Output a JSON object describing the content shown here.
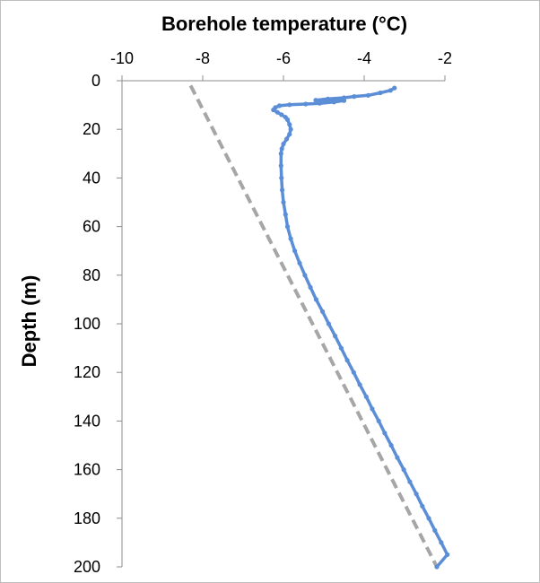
{
  "chart_data": {
    "type": "line",
    "title": "",
    "xlabel": "Borehole temperature (°C)",
    "ylabel": "Depth (m)",
    "xaxis_position": "top",
    "yaxis_inverted": true,
    "xlim": [
      -10,
      -2
    ],
    "ylim": [
      0,
      200
    ],
    "xticks": [
      -10,
      -8,
      -6,
      -4,
      -2
    ],
    "yticks": [
      0,
      20,
      40,
      60,
      80,
      100,
      120,
      140,
      160,
      180,
      200
    ],
    "grid": false,
    "legend": "none",
    "series": [
      {
        "style": "solid-with-markers",
        "color": "#5B8ED6",
        "points": [
          [
            -3.25,
            3
          ],
          [
            -3.35,
            4
          ],
          [
            -3.6,
            5
          ],
          [
            -3.9,
            6
          ],
          [
            -4.25,
            6.5
          ],
          [
            -4.5,
            7
          ],
          [
            -4.9,
            7.5
          ],
          [
            -5.2,
            8
          ],
          [
            -4.5,
            8.2
          ],
          [
            -4.75,
            8.8
          ],
          [
            -5.1,
            9.3
          ],
          [
            -5.45,
            9.6
          ],
          [
            -5.85,
            9.9
          ],
          [
            -6.1,
            10.3
          ],
          [
            -6.2,
            11
          ],
          [
            -6.25,
            12
          ],
          [
            -6.15,
            13
          ],
          [
            -6.05,
            14
          ],
          [
            -5.95,
            15
          ],
          [
            -5.9,
            16
          ],
          [
            -5.85,
            18
          ],
          [
            -5.82,
            20
          ],
          [
            -5.85,
            22
          ],
          [
            -5.92,
            24
          ],
          [
            -6.0,
            26
          ],
          [
            -6.04,
            28
          ],
          [
            -6.06,
            30
          ],
          [
            -6.06,
            35
          ],
          [
            -6.05,
            40
          ],
          [
            -6.03,
            45
          ],
          [
            -6.0,
            50
          ],
          [
            -5.95,
            55
          ],
          [
            -5.9,
            60
          ],
          [
            -5.82,
            65
          ],
          [
            -5.72,
            70
          ],
          [
            -5.6,
            75
          ],
          [
            -5.47,
            80
          ],
          [
            -5.33,
            85
          ],
          [
            -5.19,
            90
          ],
          [
            -5.03,
            95
          ],
          [
            -4.88,
            100
          ],
          [
            -4.72,
            105
          ],
          [
            -4.57,
            110
          ],
          [
            -4.42,
            115
          ],
          [
            -4.26,
            120
          ],
          [
            -4.11,
            125
          ],
          [
            -3.95,
            130
          ],
          [
            -3.8,
            135
          ],
          [
            -3.64,
            140
          ],
          [
            -3.49,
            145
          ],
          [
            -3.33,
            150
          ],
          [
            -3.18,
            155
          ],
          [
            -3.02,
            160
          ],
          [
            -2.87,
            165
          ],
          [
            -2.71,
            170
          ],
          [
            -2.56,
            175
          ],
          [
            -2.4,
            180
          ],
          [
            -2.25,
            185
          ],
          [
            -2.09,
            190
          ],
          [
            -1.94,
            195
          ],
          [
            -2.2,
            200
          ]
        ]
      },
      {
        "style": "dashed",
        "color": "#A6A6A6",
        "points": [
          [
            -8.3,
            2
          ],
          [
            -2.2,
            200
          ]
        ]
      }
    ]
  }
}
